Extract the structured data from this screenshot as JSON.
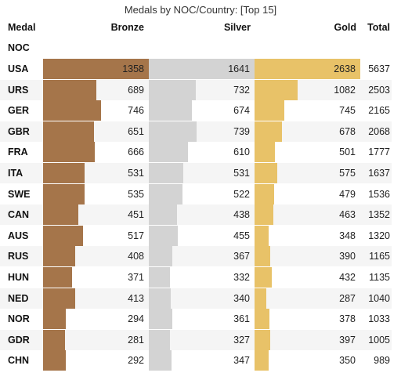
{
  "title": "Medals by NOC/Country: [Top 15]",
  "headers": {
    "medal": "Medal",
    "noc": "NOC",
    "bronze": "Bronze",
    "silver": "Silver",
    "gold": "Gold",
    "total": "Total"
  },
  "colors": {
    "bronze": "#a5754a",
    "silver": "#d3d3d3",
    "gold": "#e8c268",
    "stripe": "#f5f5f5",
    "white": "#ffffff"
  },
  "chart_data": {
    "type": "table",
    "title": "Medals by NOC/Country: [Top 15]",
    "columns": [
      "NOC",
      "Bronze",
      "Silver",
      "Gold",
      "Total"
    ],
    "rows": [
      {
        "noc": "USA",
        "bronze": 1358,
        "silver": 1641,
        "gold": 2638,
        "total": 5637
      },
      {
        "noc": "URS",
        "bronze": 689,
        "silver": 732,
        "gold": 1082,
        "total": 2503
      },
      {
        "noc": "GER",
        "bronze": 746,
        "silver": 674,
        "gold": 745,
        "total": 2165
      },
      {
        "noc": "GBR",
        "bronze": 651,
        "silver": 739,
        "gold": 678,
        "total": 2068
      },
      {
        "noc": "FRA",
        "bronze": 666,
        "silver": 610,
        "gold": 501,
        "total": 1777
      },
      {
        "noc": "ITA",
        "bronze": 531,
        "silver": 531,
        "gold": 575,
        "total": 1637
      },
      {
        "noc": "SWE",
        "bronze": 535,
        "silver": 522,
        "gold": 479,
        "total": 1536
      },
      {
        "noc": "CAN",
        "bronze": 451,
        "silver": 438,
        "gold": 463,
        "total": 1352
      },
      {
        "noc": "AUS",
        "bronze": 517,
        "silver": 455,
        "gold": 348,
        "total": 1320
      },
      {
        "noc": "RUS",
        "bronze": 408,
        "silver": 367,
        "gold": 390,
        "total": 1165
      },
      {
        "noc": "HUN",
        "bronze": 371,
        "silver": 332,
        "gold": 432,
        "total": 1135
      },
      {
        "noc": "NED",
        "bronze": 413,
        "silver": 340,
        "gold": 287,
        "total": 1040
      },
      {
        "noc": "NOR",
        "bronze": 294,
        "silver": 361,
        "gold": 378,
        "total": 1033
      },
      {
        "noc": "GDR",
        "bronze": 281,
        "silver": 327,
        "gold": 397,
        "total": 1005
      },
      {
        "noc": "CHN",
        "bronze": 292,
        "silver": 347,
        "gold": 350,
        "total": 989
      }
    ]
  }
}
